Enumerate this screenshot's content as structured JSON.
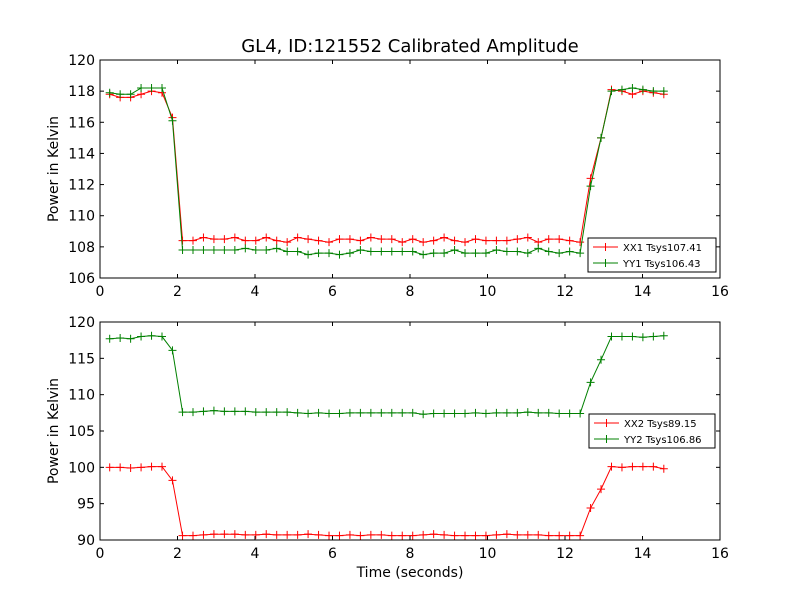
{
  "chart_data": [
    {
      "type": "line",
      "title": "GL4, ID:121552 Calibrated Amplitude",
      "xlabel": "",
      "ylabel": "Power in Kelvin",
      "xlim": [
        0,
        16
      ],
      "ylim": [
        106,
        120
      ],
      "xticks": [
        0,
        2,
        4,
        6,
        8,
        10,
        12,
        14,
        16
      ],
      "yticks": [
        106,
        108,
        110,
        112,
        114,
        116,
        118,
        120
      ],
      "grid": false,
      "legend": "lower-right",
      "series": [
        {
          "name": "XX1 Tsys107.41",
          "color": "#ff0000",
          "x": [
            0.25,
            0.52,
            0.79,
            1.06,
            1.33,
            1.6,
            1.87,
            2.13,
            2.4,
            2.67,
            2.94,
            3.21,
            3.48,
            3.75,
            4.02,
            4.29,
            4.56,
            4.83,
            5.1,
            5.37,
            5.64,
            5.91,
            6.18,
            6.45,
            6.72,
            6.99,
            7.26,
            7.53,
            7.8,
            8.07,
            8.34,
            8.61,
            8.88,
            9.15,
            9.42,
            9.69,
            9.96,
            10.23,
            10.5,
            10.77,
            11.04,
            11.31,
            11.58,
            11.85,
            12.12,
            12.39,
            12.66,
            12.93,
            13.2,
            13.47,
            13.74,
            14.01,
            14.28,
            14.55
          ],
          "y": [
            117.8,
            117.6,
            117.6,
            117.8,
            118.0,
            117.9,
            116.3,
            108.4,
            108.4,
            108.6,
            108.5,
            108.5,
            108.6,
            108.4,
            108.4,
            108.6,
            108.4,
            108.3,
            108.6,
            108.5,
            108.4,
            108.3,
            108.5,
            108.5,
            108.4,
            108.6,
            108.5,
            108.5,
            108.3,
            108.5,
            108.3,
            108.4,
            108.6,
            108.4,
            108.3,
            108.5,
            108.4,
            108.4,
            108.4,
            108.5,
            108.6,
            108.3,
            108.5,
            108.5,
            108.4,
            108.3,
            112.4,
            115.0,
            118.1,
            118.0,
            117.8,
            118.0,
            117.9,
            117.8
          ]
        },
        {
          "name": "YY1 Tsys106.43",
          "color": "#008000",
          "x": [
            0.25,
            0.52,
            0.79,
            1.06,
            1.33,
            1.6,
            1.87,
            2.13,
            2.4,
            2.67,
            2.94,
            3.21,
            3.48,
            3.75,
            4.02,
            4.29,
            4.56,
            4.83,
            5.1,
            5.37,
            5.64,
            5.91,
            6.18,
            6.45,
            6.72,
            6.99,
            7.26,
            7.53,
            7.8,
            8.07,
            8.34,
            8.61,
            8.88,
            9.15,
            9.42,
            9.69,
            9.96,
            10.23,
            10.5,
            10.77,
            11.04,
            11.31,
            11.58,
            11.85,
            12.12,
            12.39,
            12.66,
            12.93,
            13.2,
            13.47,
            13.74,
            14.01,
            14.28,
            14.55
          ],
          "y": [
            117.9,
            117.8,
            117.8,
            118.2,
            118.2,
            118.2,
            116.1,
            107.8,
            107.8,
            107.8,
            107.8,
            107.8,
            107.8,
            107.9,
            107.8,
            107.8,
            107.9,
            107.7,
            107.7,
            107.5,
            107.6,
            107.6,
            107.5,
            107.6,
            107.8,
            107.7,
            107.7,
            107.7,
            107.7,
            107.7,
            107.5,
            107.6,
            107.6,
            107.8,
            107.6,
            107.6,
            107.6,
            107.8,
            107.7,
            107.7,
            107.6,
            107.9,
            107.7,
            107.6,
            107.7,
            107.6,
            111.9,
            115.0,
            118.0,
            118.1,
            118.2,
            118.1,
            118.0,
            118.0
          ]
        }
      ]
    },
    {
      "type": "line",
      "title": "",
      "xlabel": "Time (seconds)",
      "ylabel": "Power in Kelvin",
      "xlim": [
        0,
        16
      ],
      "ylim": [
        90,
        120
      ],
      "xticks": [
        0,
        2,
        4,
        6,
        8,
        10,
        12,
        14,
        16
      ],
      "yticks": [
        90,
        95,
        100,
        105,
        110,
        115,
        120
      ],
      "grid": false,
      "legend": "center-right",
      "series": [
        {
          "name": "XX2 Tsys89.15",
          "color": "#ff0000",
          "x": [
            0.25,
            0.52,
            0.79,
            1.06,
            1.33,
            1.6,
            1.87,
            2.13,
            2.4,
            2.67,
            2.94,
            3.21,
            3.48,
            3.75,
            4.02,
            4.29,
            4.56,
            4.83,
            5.1,
            5.37,
            5.64,
            5.91,
            6.18,
            6.45,
            6.72,
            6.99,
            7.26,
            7.53,
            7.8,
            8.07,
            8.34,
            8.61,
            8.88,
            9.15,
            9.42,
            9.69,
            9.96,
            10.23,
            10.5,
            10.77,
            11.04,
            11.31,
            11.58,
            11.85,
            12.12,
            12.39,
            12.66,
            12.93,
            13.2,
            13.47,
            13.74,
            14.01,
            14.28,
            14.55
          ],
          "y": [
            100.0,
            100.0,
            99.9,
            100.0,
            100.1,
            100.1,
            98.2,
            90.6,
            90.6,
            90.7,
            90.8,
            90.8,
            90.8,
            90.7,
            90.7,
            90.8,
            90.7,
            90.7,
            90.7,
            90.8,
            90.7,
            90.6,
            90.6,
            90.7,
            90.6,
            90.7,
            90.7,
            90.6,
            90.6,
            90.6,
            90.7,
            90.8,
            90.7,
            90.6,
            90.6,
            90.6,
            90.6,
            90.7,
            90.8,
            90.7,
            90.7,
            90.7,
            90.6,
            90.6,
            90.6,
            90.6,
            94.4,
            97.0,
            100.1,
            100.0,
            100.1,
            100.1,
            100.1,
            99.8
          ]
        },
        {
          "name": "YY2 Tsys106.86",
          "color": "#008000",
          "x": [
            0.25,
            0.52,
            0.79,
            1.06,
            1.33,
            1.6,
            1.87,
            2.13,
            2.4,
            2.67,
            2.94,
            3.21,
            3.48,
            3.75,
            4.02,
            4.29,
            4.56,
            4.83,
            5.1,
            5.37,
            5.64,
            5.91,
            6.18,
            6.45,
            6.72,
            6.99,
            7.26,
            7.53,
            7.8,
            8.07,
            8.34,
            8.61,
            8.88,
            9.15,
            9.42,
            9.69,
            9.96,
            10.23,
            10.5,
            10.77,
            11.04,
            11.31,
            11.58,
            11.85,
            12.12,
            12.39,
            12.66,
            12.93,
            13.2,
            13.47,
            13.74,
            14.01,
            14.28,
            14.55
          ],
          "y": [
            117.7,
            117.8,
            117.7,
            118.0,
            118.1,
            118.0,
            116.1,
            107.6,
            107.6,
            107.7,
            107.8,
            107.7,
            107.7,
            107.7,
            107.6,
            107.6,
            107.6,
            107.6,
            107.5,
            107.4,
            107.5,
            107.4,
            107.4,
            107.5,
            107.5,
            107.5,
            107.5,
            107.5,
            107.5,
            107.5,
            107.3,
            107.4,
            107.4,
            107.4,
            107.4,
            107.5,
            107.4,
            107.5,
            107.5,
            107.5,
            107.6,
            107.5,
            107.5,
            107.4,
            107.4,
            107.4,
            111.7,
            114.8,
            118.0,
            118.0,
            118.0,
            117.9,
            118.0,
            118.1
          ]
        }
      ]
    }
  ]
}
